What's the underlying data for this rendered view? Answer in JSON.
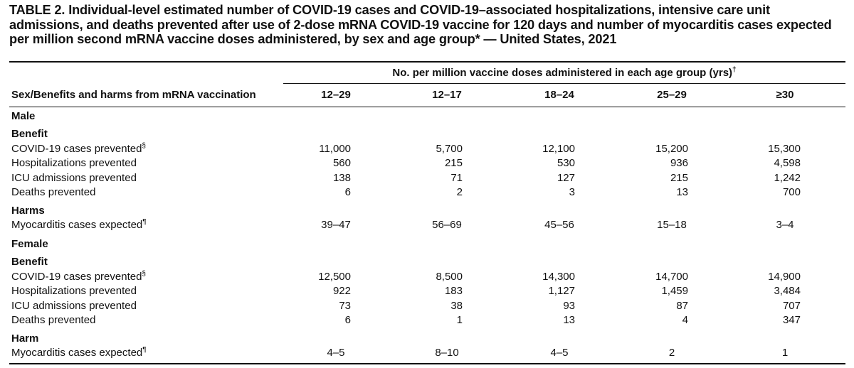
{
  "title": "TABLE 2. Individual-level estimated number of COVID-19 cases and COVID-19–associated hospitalizations, intensive care unit admissions, and deaths prevented after use of 2-dose mRNA COVID-19 vaccine for 120 days and number of myocarditis cases expected per million second mRNA vaccine doses administered, by sex and age group* — United States, 2021",
  "spanner": {
    "label": "No. per million vaccine doses administered in each age group (yrs)",
    "mark": "†"
  },
  "stub_header": "Sex/Benefits and harms from mRNA vaccination",
  "columns": [
    "12–29",
    "12–17",
    "18–24",
    "25–29",
    "≥30"
  ],
  "sections": [
    {
      "label": "Male",
      "groups": [
        {
          "label": "Benefit",
          "rows": [
            {
              "label": "COVID-19 cases prevented",
              "mark": "§",
              "values": [
                "11,000",
                "5,700",
                "12,100",
                "15,200",
                "15,300"
              ]
            },
            {
              "label": "Hospitalizations prevented",
              "mark": "",
              "values": [
                "560",
                "215",
                "530",
                "936",
                "4,598"
              ]
            },
            {
              "label": "ICU admissions prevented",
              "mark": "",
              "values": [
                "138",
                "71",
                "127",
                "215",
                "1,242"
              ]
            },
            {
              "label": "Deaths prevented",
              "mark": "",
              "values": [
                "6",
                "2",
                "3",
                "13",
                "700"
              ]
            }
          ]
        },
        {
          "label": "Harms",
          "rows": [
            {
              "label": "Myocarditis cases expected",
              "mark": "¶",
              "values": [
                "39–47",
                "56–69",
                "45–56",
                "15–18",
                "3–4"
              ]
            }
          ]
        }
      ]
    },
    {
      "label": "Female",
      "groups": [
        {
          "label": "Benefit",
          "rows": [
            {
              "label": "COVID-19 cases prevented",
              "mark": "§",
              "values": [
                "12,500",
                "8,500",
                "14,300",
                "14,700",
                "14,900"
              ]
            },
            {
              "label": "Hospitalizations prevented",
              "mark": "",
              "values": [
                "922",
                "183",
                "1,127",
                "1,459",
                "3,484"
              ]
            },
            {
              "label": "ICU admissions prevented",
              "mark": "",
              "values": [
                "73",
                "38",
                "93",
                "87",
                "707"
              ]
            },
            {
              "label": "Deaths prevented",
              "mark": "",
              "values": [
                "6",
                "1",
                "13",
                "4",
                "347"
              ]
            }
          ]
        },
        {
          "label": "Harm",
          "rows": [
            {
              "label": "Myocarditis cases expected",
              "mark": "¶",
              "values": [
                "4–5",
                "8–10",
                "4–5",
                "2",
                "1"
              ]
            }
          ]
        }
      ]
    }
  ]
}
